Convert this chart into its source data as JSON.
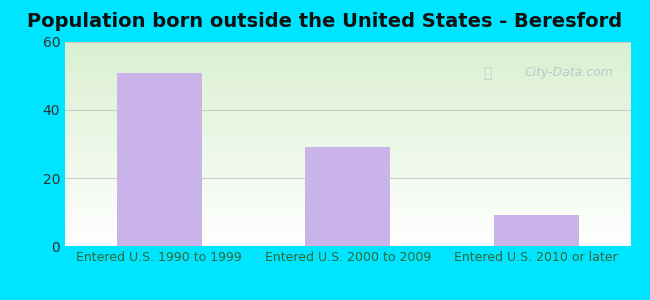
{
  "title": "Population born outside the United States - Beresford",
  "categories": [
    "Entered U.S. 1990 to 1999",
    "Entered U.S. 2000 to 2009",
    "Entered U.S. 2010 or later"
  ],
  "values": [
    51,
    29,
    9
  ],
  "bar_color": "#c9b3e8",
  "ylim": [
    0,
    60
  ],
  "yticks": [
    0,
    20,
    40,
    60
  ],
  "title_fontsize": 14,
  "tick_fontsize": 10,
  "outer_bg_color": "#00e5ff",
  "inner_bg_top": "#daf0d0",
  "inner_bg_bottom": "#ffffff",
  "watermark_text": "City-Data.com",
  "watermark_color": "#b0c4c8",
  "grid_color": "#cccccc"
}
